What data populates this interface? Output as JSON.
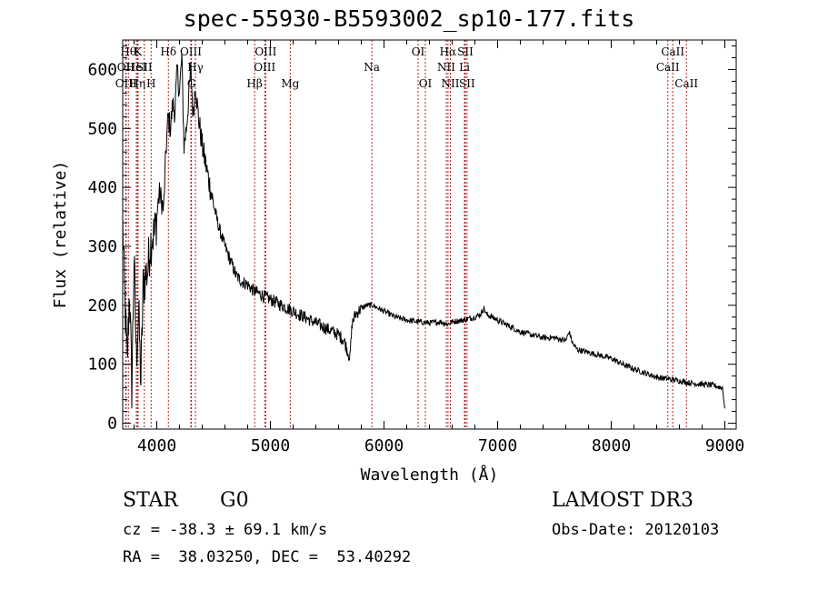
{
  "title": "spec-55930-B5593002_sp10-177.fits",
  "info": {
    "class": "STAR",
    "subclass": "G0",
    "survey": "LAMOST DR3",
    "cz": "cz = -38.3 ± 69.1 km/s",
    "obs_date": "Obs-Date: 20120103",
    "coords": "RA =  38.03250, DEC =  53.40292"
  },
  "chart_data": {
    "type": "line",
    "title": "spec-55930-B5593002_sp10-177.fits",
    "xlabel": "Wavelength (Å)",
    "ylabel": "Flux (relative)",
    "xlim": [
      3700,
      9100
    ],
    "ylim": [
      -10,
      650
    ],
    "xticks": [
      4000,
      5000,
      6000,
      7000,
      8000,
      9000
    ],
    "yticks": [
      0,
      100,
      200,
      300,
      400,
      500,
      600
    ],
    "series": [
      {
        "name": "flux",
        "x": [
          3700,
          3720,
          3740,
          3760,
          3780,
          3800,
          3820,
          3840,
          3860,
          3880,
          3900,
          3920,
          3940,
          3960,
          3980,
          4000,
          4020,
          4040,
          4060,
          4080,
          4100,
          4120,
          4140,
          4160,
          4180,
          4200,
          4220,
          4240,
          4260,
          4280,
          4300,
          4320,
          4340,
          4360,
          4380,
          4400,
          4450,
          4500,
          4550,
          4600,
          4650,
          4700,
          4750,
          4800,
          4850,
          4900,
          4950,
          5000,
          5100,
          5200,
          5300,
          5400,
          5500,
          5600,
          5650,
          5700,
          5720,
          5750,
          5800,
          5850,
          5900,
          6000,
          6100,
          6200,
          6300,
          6400,
          6500,
          6560,
          6600,
          6700,
          6800,
          6850,
          6880,
          6900,
          7000,
          7100,
          7200,
          7300,
          7400,
          7500,
          7600,
          7630,
          7660,
          7700,
          7800,
          7900,
          8000,
          8100,
          8200,
          8300,
          8400,
          8500,
          8600,
          8700,
          8800,
          8900,
          8980,
          9000
        ],
        "y": [
          340,
          200,
          100,
          230,
          60,
          280,
          110,
          190,
          70,
          230,
          250,
          260,
          300,
          320,
          320,
          350,
          390,
          380,
          360,
          460,
          520,
          500,
          540,
          530,
          600,
          560,
          620,
          470,
          500,
          550,
          600,
          520,
          580,
          530,
          500,
          470,
          420,
          370,
          330,
          300,
          275,
          250,
          240,
          235,
          225,
          220,
          215,
          210,
          200,
          190,
          180,
          170,
          160,
          150,
          140,
          110,
          170,
          185,
          195,
          200,
          200,
          190,
          180,
          175,
          172,
          170,
          172,
          168,
          172,
          175,
          180,
          185,
          195,
          185,
          175,
          165,
          155,
          150,
          145,
          145,
          140,
          155,
          135,
          125,
          120,
          115,
          110,
          100,
          92,
          85,
          78,
          75,
          72,
          68,
          66,
          64,
          60,
          25
        ]
      }
    ],
    "lines": [
      {
        "w": 3750,
        "label": "Hθ",
        "row": 0
      },
      {
        "w": 3727,
        "label": "OII",
        "row": 1
      },
      {
        "w": 3730,
        "label": "OIII",
        "row": 2
      },
      {
        "w": 3835,
        "label": "K",
        "row": 0
      },
      {
        "w": 3820,
        "label": "HeI",
        "row": 1
      },
      {
        "w": 3830,
        "label": "Hη",
        "row": 2
      },
      {
        "w": 3890,
        "label": "SII",
        "row": 1
      },
      {
        "w": 3950,
        "label": "H",
        "row": 2
      },
      {
        "w": 4102,
        "label": "Hδ",
        "row": 0
      },
      {
        "w": 4300,
        "label": "OIII",
        "row": 0
      },
      {
        "w": 4340,
        "label": "Hγ",
        "row": 1
      },
      {
        "w": 4305,
        "label": "G",
        "row": 2
      },
      {
        "w": 4861,
        "label": "Hβ",
        "row": 2
      },
      {
        "w": 4959,
        "label": "OIII",
        "row": 0
      },
      {
        "w": 4950,
        "label": "OIII",
        "row": 1
      },
      {
        "w": 5175,
        "label": "Mg",
        "row": 2
      },
      {
        "w": 5893,
        "label": "Na",
        "row": 1
      },
      {
        "w": 6300,
        "label": "OI",
        "row": 0
      },
      {
        "w": 6364,
        "label": "OI",
        "row": 2
      },
      {
        "w": 6563,
        "label": "Hα",
        "row": 0
      },
      {
        "w": 6548,
        "label": "NII",
        "row": 1
      },
      {
        "w": 6584,
        "label": "NII",
        "row": 2
      },
      {
        "w": 6716,
        "label": "SII",
        "row": 0
      },
      {
        "w": 6708,
        "label": "Li",
        "row": 1
      },
      {
        "w": 6731,
        "label": "SII",
        "row": 2
      },
      {
        "w": 8542,
        "label": "CaII",
        "row": 0
      },
      {
        "w": 8498,
        "label": "CaII",
        "row": 1
      },
      {
        "w": 8662,
        "label": "CaII",
        "row": 2
      }
    ]
  }
}
